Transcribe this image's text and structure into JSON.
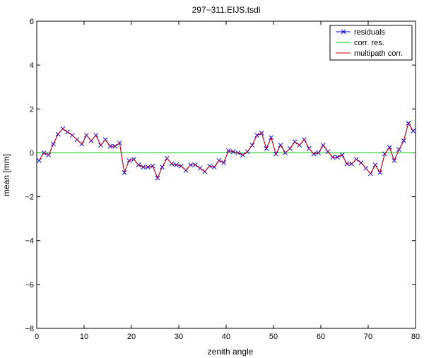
{
  "chart_data": {
    "type": "line",
    "title": "297−311.EIJS.tsdl",
    "xlabel": "zenith angle",
    "ylabel": "mean  [mm]",
    "xlim": [
      0,
      80
    ],
    "ylim": [
      -8,
      6
    ],
    "xticks": [
      "0",
      "10",
      "20",
      "30",
      "40",
      "50",
      "60",
      "70",
      "80"
    ],
    "yticks": [
      "−8",
      "−6",
      "−4",
      "−2",
      "0",
      "2",
      "4",
      "6"
    ],
    "grid": false,
    "legend_position": "top-right",
    "x": [
      0.5,
      1.5,
      2.5,
      3.5,
      4.5,
      5.5,
      6.5,
      7.5,
      8.5,
      9.5,
      10.5,
      11.5,
      12.5,
      13.5,
      14.5,
      15.5,
      16.5,
      17.5,
      18.5,
      19.5,
      20.5,
      21.5,
      22.5,
      23.5,
      24.5,
      25.5,
      26.5,
      27.5,
      28.5,
      29.5,
      30.5,
      31.5,
      32.5,
      33.5,
      34.5,
      35.5,
      36.5,
      37.5,
      38.5,
      39.5,
      40.5,
      41.5,
      42.5,
      43.5,
      44.5,
      45.5,
      46.5,
      47.5,
      48.5,
      49.5,
      50.5,
      51.5,
      52.5,
      53.5,
      54.5,
      55.5,
      56.5,
      57.5,
      58.5,
      59.5,
      60.5,
      61.5,
      62.5,
      63.5,
      64.5,
      65.5,
      66.5,
      67.5,
      68.5,
      69.5,
      70.5,
      71.5,
      72.5,
      73.5,
      74.5,
      75.5,
      76.5,
      77.5,
      78.5,
      79.5
    ],
    "series": [
      {
        "name": "residuals",
        "color": "#0000ff",
        "marker": "x",
        "values": [
          -0.35,
          0.0,
          -0.1,
          0.4,
          0.85,
          1.1,
          0.95,
          0.8,
          0.6,
          0.4,
          0.8,
          0.55,
          0.8,
          0.35,
          0.6,
          0.3,
          0.3,
          0.45,
          -0.9,
          -0.35,
          -0.3,
          -0.55,
          -0.65,
          -0.65,
          -0.6,
          -1.15,
          -0.65,
          -0.25,
          -0.5,
          -0.55,
          -0.6,
          -0.8,
          -0.55,
          -0.55,
          -0.7,
          -0.85,
          -0.6,
          -0.65,
          -0.35,
          -0.45,
          0.1,
          0.05,
          0.0,
          -0.1,
          0.05,
          0.35,
          0.8,
          0.9,
          0.2,
          0.7,
          -0.05,
          0.35,
          0.0,
          0.2,
          0.5,
          0.35,
          0.6,
          0.2,
          -0.05,
          0.0,
          0.35,
          0.05,
          -0.2,
          -0.2,
          -0.1,
          -0.5,
          -0.5,
          -0.3,
          -0.45,
          -0.7,
          -0.95,
          -0.55,
          -0.9,
          -0.05,
          0.25,
          -0.35,
          0.15,
          0.55,
          1.35,
          1.0
        ]
      },
      {
        "name": "corr. res.",
        "color": "#00cc00",
        "constant": 0
      },
      {
        "name": "multipath corr.",
        "color": "#cc0000",
        "same_as": "residuals"
      }
    ]
  }
}
